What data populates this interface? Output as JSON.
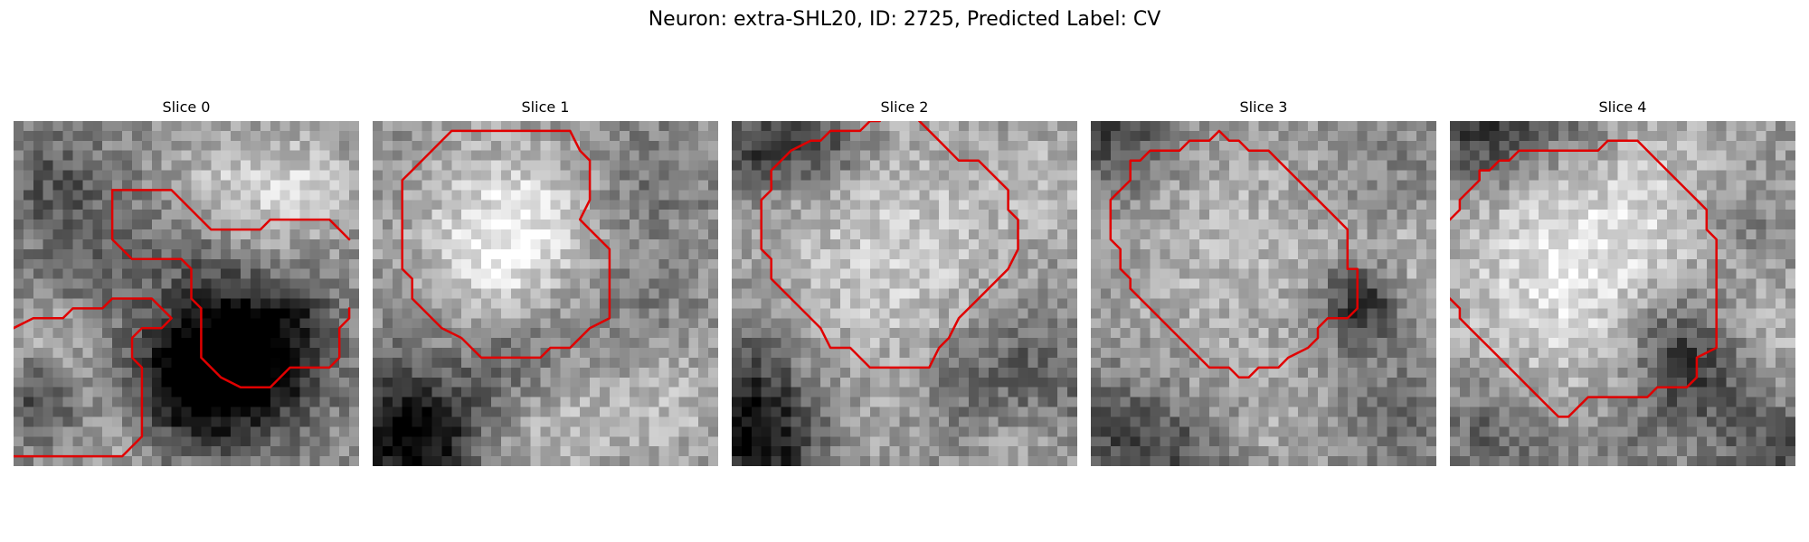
{
  "figure": {
    "title": "Neuron: extra-SHL20, ID: 2725, Predicted Label: CV",
    "contour_color": "#e00000",
    "colormap": "grayscale",
    "panels": [
      {
        "label": "Slice 0",
        "grid_size": 35,
        "contours": [
          [
            [
              10,
              7
            ],
            [
              16,
              7
            ],
            [
              20,
              11
            ],
            [
              25,
              11
            ],
            [
              26,
              10
            ],
            [
              32,
              10
            ],
            [
              34,
              12
            ]
          ],
          [
            [
              10,
              7
            ],
            [
              10,
              12
            ],
            [
              12,
              14
            ],
            [
              17,
              14
            ],
            [
              18,
              15
            ],
            [
              18,
              18
            ],
            [
              19,
              19
            ],
            [
              19,
              24
            ],
            [
              21,
              26
            ],
            [
              23,
              27
            ],
            [
              26,
              27
            ],
            [
              28,
              25
            ],
            [
              32,
              25
            ],
            [
              33,
              24
            ],
            [
              33,
              21
            ],
            [
              34,
              20
            ],
            [
              34,
              19
            ]
          ],
          [
            [
              0,
              21
            ],
            [
              2,
              20
            ],
            [
              5,
              20
            ],
            [
              6,
              19
            ],
            [
              9,
              19
            ],
            [
              10,
              18
            ],
            [
              14,
              18
            ],
            [
              15,
              19
            ],
            [
              16,
              20
            ],
            [
              15,
              21
            ],
            [
              13,
              21
            ],
            [
              12,
              22
            ],
            [
              12,
              24
            ],
            [
              13,
              25
            ],
            [
              13,
              32
            ],
            [
              11,
              34
            ],
            [
              10,
              34
            ],
            [
              0,
              34
            ]
          ]
        ],
        "noise": {
          "seed": 17,
          "blobs": [
            [
              4,
              6,
              4,
              -60
            ],
            [
              6,
              16,
              4,
              -40
            ],
            [
              23,
              7,
              5,
              60
            ],
            [
              30,
              6,
              3,
              40
            ],
            [
              13,
              12,
              4,
              -30
            ],
            [
              20,
              14,
              3,
              -40
            ],
            [
              20,
              24,
              5,
              -120
            ],
            [
              24,
              24,
              5,
              -110
            ],
            [
              16,
              27,
              4,
              -80
            ],
            [
              28,
              19,
              3,
              -50
            ],
            [
              2,
              28,
              3,
              -70
            ],
            [
              10,
              31,
              4,
              30
            ],
            [
              4,
              21,
              3,
              50
            ]
          ]
        }
      },
      {
        "label": "Slice 1",
        "grid_size": 35,
        "contours": [
          [
            [
              8,
              1
            ],
            [
              20,
              1
            ],
            [
              21,
              3
            ],
            [
              22,
              4
            ],
            [
              22,
              8
            ],
            [
              21,
              10
            ],
            [
              22,
              11
            ],
            [
              24,
              13
            ],
            [
              24,
              20
            ],
            [
              22,
              21
            ],
            [
              20,
              23
            ],
            [
              18,
              23
            ],
            [
              17,
              24
            ],
            [
              11,
              24
            ],
            [
              9,
              22
            ],
            [
              7,
              21
            ],
            [
              5,
              19
            ],
            [
              4,
              18
            ],
            [
              4,
              16
            ],
            [
              3,
              15
            ],
            [
              3,
              6
            ],
            [
              4,
              5
            ],
            [
              6,
              3
            ],
            [
              8,
              1
            ]
          ]
        ],
        "noise": {
          "seed": 29,
          "blobs": [
            [
              12,
              10,
              6,
              70
            ],
            [
              12,
              16,
              4,
              40
            ],
            [
              17,
              9,
              4,
              30
            ],
            [
              14,
              24,
              4,
              -60
            ],
            [
              2,
              30,
              5,
              -90
            ],
            [
              5,
              33,
              4,
              -80
            ],
            [
              28,
              5,
              4,
              -30
            ],
            [
              26,
              18,
              4,
              -20
            ],
            [
              18,
              30,
              5,
              50
            ],
            [
              30,
              28,
              4,
              40
            ]
          ]
        }
      },
      {
        "label": "Slice 2",
        "grid_size": 35,
        "contours": [
          [
            [
              15,
              0
            ],
            [
              14,
              0
            ],
            [
              13,
              1
            ],
            [
              10,
              1
            ],
            [
              9,
              2
            ],
            [
              8,
              2
            ],
            [
              6,
              3
            ],
            [
              5,
              4
            ],
            [
              4,
              5
            ],
            [
              4,
              7
            ],
            [
              3,
              8
            ],
            [
              3,
              13
            ],
            [
              4,
              14
            ],
            [
              4,
              16
            ],
            [
              6,
              18
            ],
            [
              9,
              21
            ],
            [
              10,
              23
            ],
            [
              12,
              23
            ],
            [
              14,
              25
            ],
            [
              20,
              25
            ],
            [
              21,
              23
            ],
            [
              22,
              22
            ],
            [
              23,
              20
            ],
            [
              25,
              18
            ],
            [
              28,
              15
            ],
            [
              29,
              13
            ],
            [
              29,
              10
            ],
            [
              28,
              9
            ],
            [
              28,
              7
            ],
            [
              26,
              5
            ],
            [
              25,
              4
            ],
            [
              23,
              4
            ],
            [
              21,
              2
            ],
            [
              19,
              0
            ]
          ]
        ],
        "noise": {
          "seed": 41,
          "blobs": [
            [
              16,
              13,
              9,
              60
            ],
            [
              9,
              2,
              3,
              -80
            ],
            [
              2,
              2,
              3,
              -90
            ],
            [
              0,
              28,
              5,
              -100
            ],
            [
              3,
              33,
              4,
              -80
            ],
            [
              30,
              25,
              5,
              -60
            ],
            [
              22,
              28,
              4,
              -40
            ],
            [
              31,
              6,
              4,
              30
            ],
            [
              28,
              32,
              4,
              40
            ],
            [
              17,
              30,
              4,
              20
            ]
          ]
        }
      },
      {
        "label": "Slice 3",
        "grid_size": 35,
        "contours": [
          [
            [
              13,
              1
            ],
            [
              14,
              2
            ],
            [
              15,
              2
            ],
            [
              16,
              3
            ],
            [
              18,
              3
            ],
            [
              19,
              4
            ],
            [
              21,
              6
            ],
            [
              23,
              8
            ],
            [
              25,
              10
            ],
            [
              26,
              11
            ],
            [
              26,
              15
            ],
            [
              27,
              15
            ],
            [
              27,
              19
            ],
            [
              26,
              20
            ],
            [
              24,
              20
            ],
            [
              23,
              21
            ],
            [
              23,
              22
            ],
            [
              22,
              23
            ],
            [
              20,
              24
            ],
            [
              19,
              25
            ],
            [
              17,
              25
            ],
            [
              16,
              26
            ],
            [
              15,
              26
            ],
            [
              14,
              25
            ],
            [
              12,
              25
            ],
            [
              10,
              23
            ],
            [
              9,
              22
            ],
            [
              8,
              21
            ],
            [
              6,
              19
            ],
            [
              5,
              18
            ],
            [
              4,
              17
            ],
            [
              4,
              16
            ],
            [
              3,
              15
            ],
            [
              3,
              13
            ],
            [
              2,
              12
            ],
            [
              2,
              8
            ],
            [
              3,
              7
            ],
            [
              4,
              6
            ],
            [
              4,
              4
            ],
            [
              5,
              4
            ],
            [
              6,
              3
            ],
            [
              9,
              3
            ],
            [
              10,
              2
            ],
            [
              12,
              2
            ],
            [
              13,
              1
            ]
          ]
        ],
        "noise": {
          "seed": 53,
          "blobs": [
            [
              14,
              13,
              9,
              40
            ],
            [
              2,
              1,
              4,
              -80
            ],
            [
              27,
              18,
              3,
              -120
            ],
            [
              29,
              5,
              4,
              -20
            ],
            [
              2,
              31,
              4,
              -70
            ],
            [
              9,
              33,
              3,
              -50
            ],
            [
              30,
              30,
              4,
              -40
            ],
            [
              20,
              31,
              4,
              20
            ],
            [
              32,
              14,
              4,
              40
            ]
          ]
        }
      },
      {
        "label": "Slice 4",
        "grid_size": 35,
        "contours": [
          [
            [
              0,
              10
            ],
            [
              1,
              9
            ],
            [
              1,
              8
            ],
            [
              2,
              7
            ],
            [
              3,
              6
            ],
            [
              3,
              5
            ],
            [
              4,
              5
            ],
            [
              5,
              4
            ],
            [
              6,
              4
            ],
            [
              7,
              3
            ],
            [
              15,
              3
            ],
            [
              16,
              2
            ],
            [
              19,
              2
            ],
            [
              20,
              3
            ],
            [
              21,
              4
            ],
            [
              22,
              5
            ],
            [
              23,
              6
            ],
            [
              24,
              7
            ],
            [
              25,
              8
            ],
            [
              26,
              9
            ],
            [
              26,
              11
            ],
            [
              27,
              12
            ],
            [
              27,
              23
            ],
            [
              25,
              24
            ],
            [
              25,
              26
            ],
            [
              24,
              27
            ],
            [
              21,
              27
            ],
            [
              20,
              28
            ],
            [
              14,
              28
            ],
            [
              13,
              29
            ],
            [
              12,
              30
            ],
            [
              11,
              30
            ],
            [
              10,
              29
            ],
            [
              9,
              28
            ],
            [
              8,
              27
            ],
            [
              7,
              26
            ],
            [
              6,
              25
            ],
            [
              5,
              24
            ],
            [
              4,
              23
            ],
            [
              3,
              22
            ],
            [
              2,
              21
            ],
            [
              1,
              20
            ],
            [
              1,
              19
            ],
            [
              0,
              18
            ]
          ]
        ],
        "noise": {
          "seed": 67,
          "blobs": [
            [
              14,
              13,
              11,
              90
            ],
            [
              3,
              1,
              4,
              -110
            ],
            [
              12,
              0,
              4,
              -60
            ],
            [
              22,
              20,
              4,
              -60
            ],
            [
              24,
              25,
              4,
              -90
            ],
            [
              29,
              10,
              4,
              -40
            ],
            [
              4,
              31,
              4,
              -60
            ],
            [
              32,
              33,
              4,
              -70
            ],
            [
              18,
              32,
              4,
              -30
            ],
            [
              33,
              22,
              4,
              20
            ]
          ]
        }
      }
    ]
  }
}
